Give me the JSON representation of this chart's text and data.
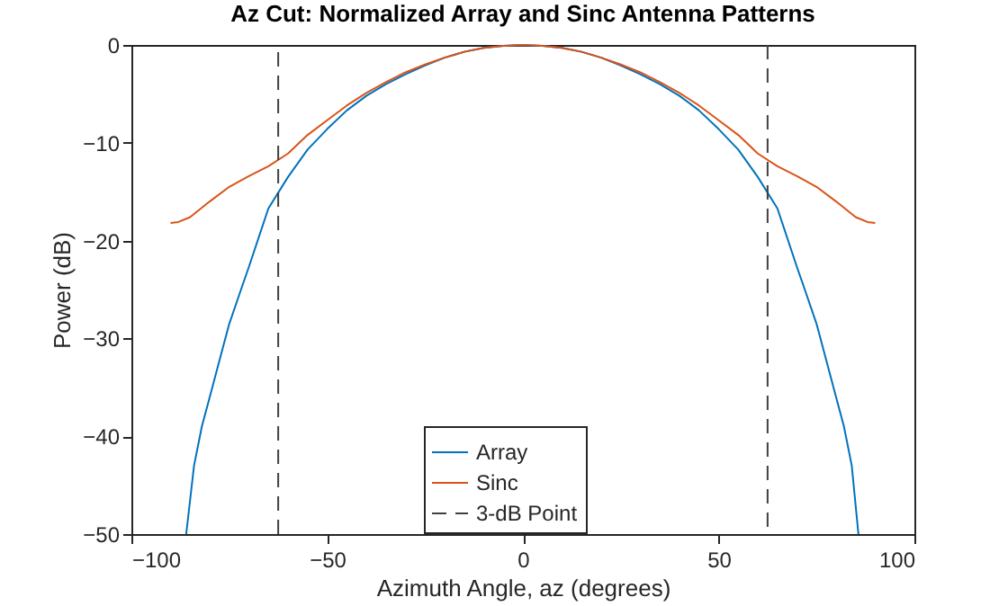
{
  "chart_data": {
    "type": "line",
    "title": "Az Cut: Normalized Array and Sinc Antenna Patterns",
    "xlabel": "Azimuth Angle, az (degrees)",
    "ylabel": "Power (dB)",
    "xlim": [
      -100,
      100
    ],
    "xticks": [
      -100,
      -50,
      0,
      50,
      100
    ],
    "ylim": [
      -50,
      0
    ],
    "yticks": [
      -50,
      -40,
      -30,
      -20,
      -10,
      0
    ],
    "grid": false,
    "legend": "bottom",
    "line_style": "solid",
    "series": [
      {
        "name": "Array",
        "color": "#0072bd",
        "x": [
          -86,
          -84,
          -82,
          -80,
          -78,
          -75,
          -72,
          -70,
          -65,
          -60,
          -55,
          -50,
          -45,
          -40,
          -35,
          -30,
          -25,
          -20,
          -15,
          -10,
          -5,
          0,
          5,
          10,
          15,
          20,
          25,
          30,
          35,
          40,
          45,
          50,
          55,
          60,
          65,
          70,
          72,
          75,
          78,
          80,
          82,
          84,
          85.7
        ],
        "values": [
          -50,
          -43,
          -39,
          -36,
          -33,
          -28.5,
          -25,
          -22.7,
          -16.7,
          -13.5,
          -10.7,
          -8.6,
          -6.7,
          -5.2,
          -4,
          -3,
          -2.1,
          -1.3,
          -0.7,
          -0.3,
          -0.1,
          0,
          -0.1,
          -0.3,
          -0.7,
          -1.3,
          -2.1,
          -3,
          -4,
          -5.2,
          -6.7,
          -8.6,
          -10.7,
          -13.5,
          -16.7,
          -22.7,
          -25,
          -28.5,
          -33,
          -36,
          -39,
          -43,
          -50
        ]
      },
      {
        "name": "Sinc",
        "color": "#d95319",
        "x": [
          -90,
          -88,
          -85,
          -80,
          -75,
          -70,
          -65,
          -60,
          -55,
          -50,
          -45,
          -40,
          -35,
          -30,
          -25,
          -20,
          -15,
          -10,
          -5,
          0,
          5,
          10,
          15,
          20,
          25,
          30,
          35,
          40,
          45,
          50,
          55,
          60,
          65,
          70,
          75,
          80,
          85,
          88,
          90
        ],
        "values": [
          -18.2,
          -18.1,
          -17.6,
          -16,
          -14.5,
          -13.4,
          -12.4,
          -11.1,
          -9.2,
          -7.7,
          -6.2,
          -4.9,
          -3.8,
          -2.8,
          -2,
          -1.3,
          -0.7,
          -0.3,
          -0.1,
          0,
          -0.1,
          -0.3,
          -0.7,
          -1.3,
          -2,
          -2.8,
          -3.8,
          -4.9,
          -6.2,
          -7.7,
          -9.2,
          -11.1,
          -12.4,
          -13.4,
          -14.5,
          -16,
          -17.6,
          -18.1,
          -18.2
        ]
      },
      {
        "name": "3-dB Point",
        "color": "#404040",
        "line_style": "dashed",
        "x": [
          -62.5,
          -62.5,
          0,
          62.5,
          62.5
        ],
        "values": [
          -50,
          0,
          null,
          0,
          -50
        ]
      }
    ]
  }
}
